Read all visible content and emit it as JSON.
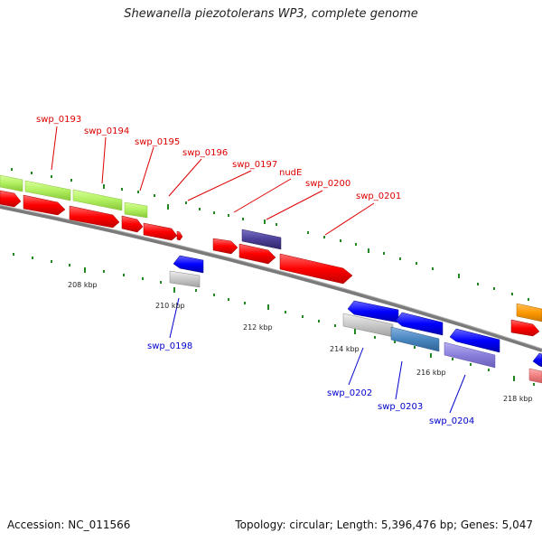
{
  "title": "Shewanella piezotolerans WP3, complete genome",
  "footer": {
    "accession": "Accession: NC_011566",
    "topology": "Topology: circular; Length: 5,396,476 bp; Genes: 5,047"
  },
  "colors": {
    "forward_cds": "#ff0000",
    "reverse_cds": "#0000ff",
    "rrna_like": "#b0f060",
    "label_top": "#dd0000",
    "label_bottom": "#0000cc",
    "backbone": "#808080",
    "ticks": "#228822"
  },
  "gene_labels_top": [
    "swp_0193",
    "swp_0194",
    "swp_0195",
    "swp_0196",
    "swp_0197",
    "nudE",
    "swp_0200",
    "swp_0201"
  ],
  "gene_labels_bottom": [
    "swp_0198",
    "swp_0202",
    "swp_0203",
    "swp_0204"
  ],
  "scale_labels": [
    "208 kbp",
    "210 kbp",
    "212 kbp",
    "214 kbp",
    "216 kbp",
    "218 kbp"
  ]
}
